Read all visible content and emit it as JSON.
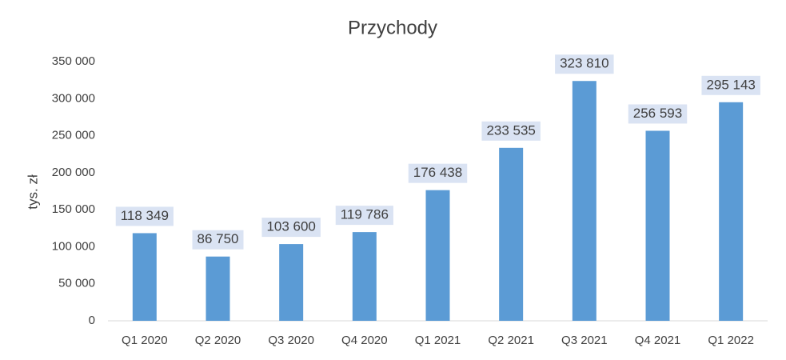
{
  "chart_data": {
    "type": "bar",
    "title": "Przychody",
    "y_label": "tys. zł",
    "categories": [
      "Q1 2020",
      "Q2 2020",
      "Q3 2020",
      "Q4 2020",
      "Q1 2021",
      "Q2 2021",
      "Q3 2021",
      "Q4 2021",
      "Q1 2022"
    ],
    "values": [
      118349,
      86750,
      103600,
      119786,
      176438,
      233535,
      323810,
      256593,
      295143
    ],
    "value_labels": [
      "118 349",
      "86 750",
      "103 600",
      "119 786",
      "176 438",
      "233 535",
      "323 810",
      "256 593",
      "295 143"
    ],
    "color": "#5b9bd5",
    "ylim": [
      0,
      350000
    ],
    "yticks": [
      0,
      {
        "value": 50000,
        "label": "50 000"
      },
      {
        "value": 100000,
        "label": "100 000"
      },
      {
        "value": 150000,
        "label": "150 000"
      },
      {
        "value": 200000,
        "label": "200 000"
      },
      {
        "value": 250000,
        "label": "250 000"
      },
      {
        "value": 300000,
        "label": "300 000"
      },
      {
        "value": 350000,
        "label": "350 000"
      }
    ],
    "grid": false
  }
}
